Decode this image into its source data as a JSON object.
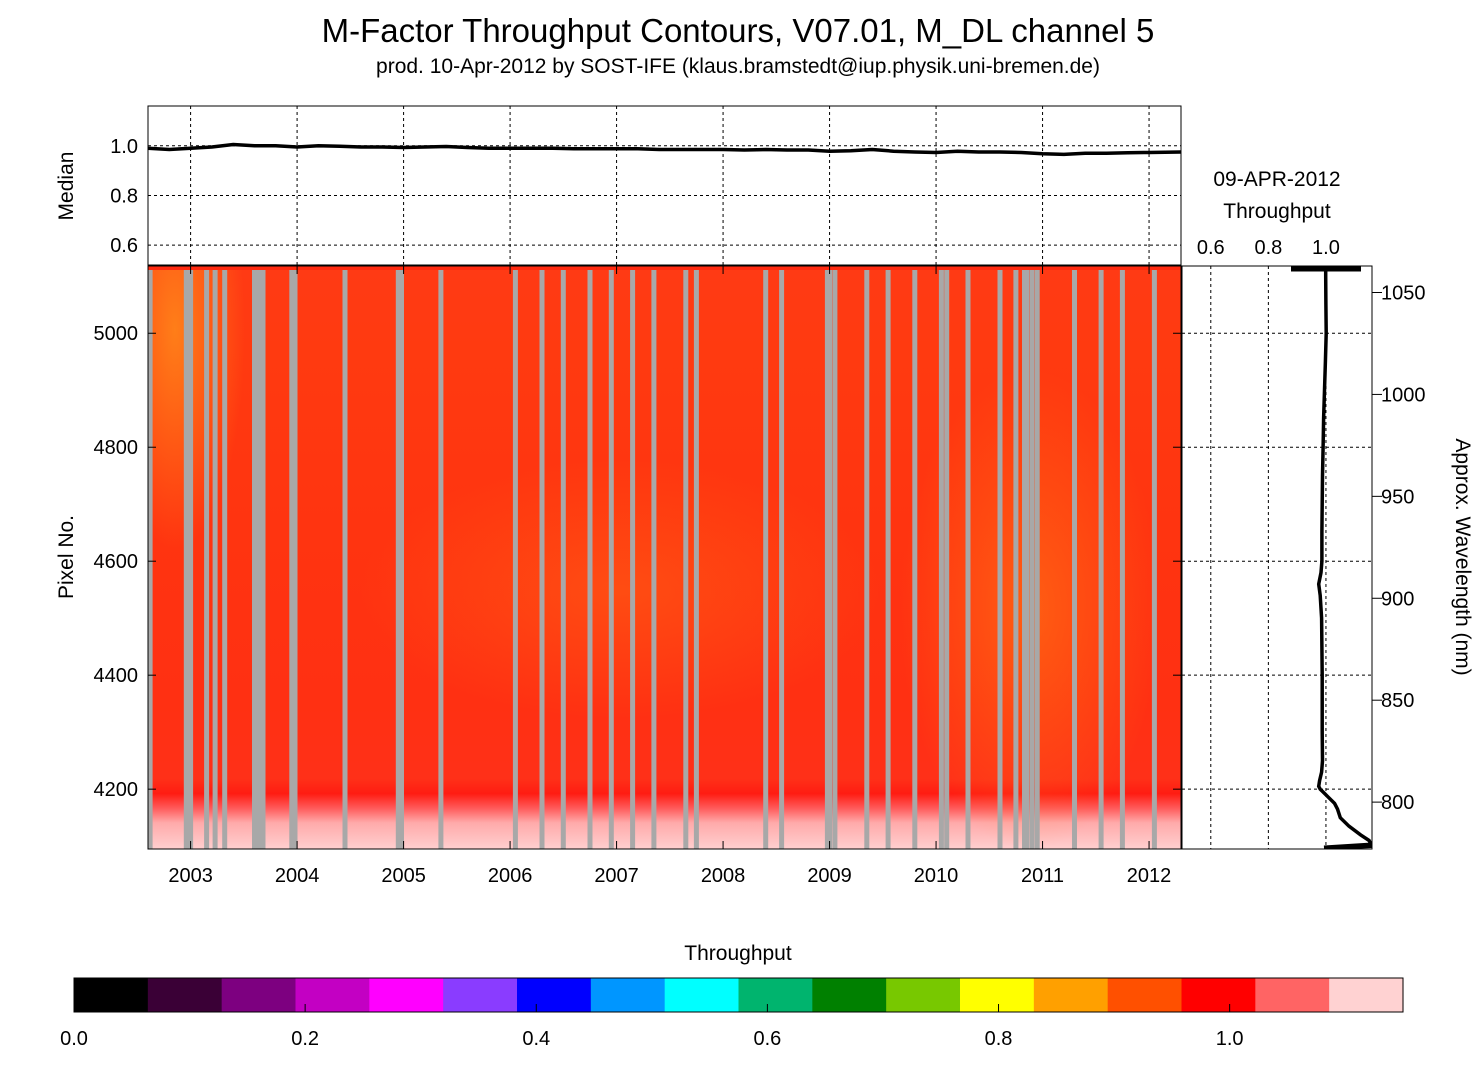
{
  "chart_data": [
    {
      "type": "line",
      "title": "M-Factor Throughput Contours, V07.01, M_DL channel 5",
      "subtitle": "prod. 10-Apr-2012 by SOST-IFE (klaus.bramstedt@iup.physik.uni-bremen.de)",
      "ylabel": "Median",
      "yticks": [
        "0.6",
        "0.8",
        "1.0"
      ],
      "ylim": [
        0.52,
        1.16
      ],
      "xlim": [
        2002.6,
        2012.3
      ],
      "grid": true,
      "series": [
        {
          "x": [
            2002.6,
            2002.8,
            2003.0,
            2003.2,
            2003.4,
            2003.6,
            2003.8,
            2004.0,
            2004.2,
            2004.4,
            2004.6,
            2004.8,
            2005.0,
            2005.2,
            2005.4,
            2005.6,
            2005.8,
            2006.0,
            2006.2,
            2006.4,
            2006.6,
            2006.8,
            2007.0,
            2007.2,
            2007.4,
            2007.6,
            2007.8,
            2008.0,
            2008.2,
            2008.4,
            2008.6,
            2008.8,
            2009.0,
            2009.2,
            2009.4,
            2009.6,
            2009.8,
            2010.0,
            2010.2,
            2010.4,
            2010.6,
            2010.8,
            2011.0,
            2011.2,
            2011.4,
            2011.6,
            2011.8,
            2012.0,
            2012.3
          ],
          "values": [
            0.99,
            0.985,
            0.99,
            0.995,
            1.005,
            1.0,
            1.0,
            0.995,
            1.0,
            0.998,
            0.995,
            0.995,
            0.993,
            0.995,
            0.997,
            0.993,
            0.99,
            0.99,
            0.99,
            0.99,
            0.988,
            0.988,
            0.988,
            0.988,
            0.985,
            0.985,
            0.985,
            0.985,
            0.983,
            0.985,
            0.983,
            0.983,
            0.978,
            0.98,
            0.985,
            0.978,
            0.975,
            0.973,
            0.978,
            0.975,
            0.975,
            0.973,
            0.968,
            0.965,
            0.97,
            0.97,
            0.972,
            0.973,
            0.975
          ]
        }
      ]
    },
    {
      "type": "heatmap",
      "ylabel": "Pixel No.",
      "xticks": [
        "2003",
        "2004",
        "2005",
        "2006",
        "2007",
        "2008",
        "2009",
        "2010",
        "2011",
        "2012"
      ],
      "yticks": [
        "4200",
        "4400",
        "4600",
        "4800",
        "5000"
      ],
      "xlim": [
        2002.6,
        2012.3
      ],
      "ylim": [
        4095,
        5118
      ],
      "colorscale": "Throughput",
      "description_values": "Throughput ~0.95-1.02 over most of the field (red/orange), orange-tinted near 0.92-0.95 at the top-left (2002-2003, pixels 4950-5118) and across 2010-2011; high values ~1.08-1.15 (pink) in pixels 4095-4150; missing data columns shown in grey",
      "gap_years": [
        2002.62,
        2002.96,
        2003.0,
        2003.15,
        2003.23,
        2003.32,
        2003.6,
        2003.62,
        2003.65,
        2003.68,
        2003.95,
        2003.98,
        2004.45,
        2004.95,
        2004.98,
        2005.35,
        2006.05,
        2006.3,
        2006.5,
        2006.75,
        2006.95,
        2007.15,
        2007.35,
        2007.65,
        2007.75,
        2008.4,
        2008.55,
        2008.98,
        2009.0,
        2009.05,
        2009.35,
        2009.55,
        2009.8,
        2010.05,
        2010.1,
        2010.3,
        2010.6,
        2010.75,
        2010.83,
        2010.85,
        2010.9,
        2010.95,
        2011.3,
        2011.55,
        2011.75,
        2012.05
      ]
    },
    {
      "type": "line",
      "title": "09-APR-2012",
      "xlabel": "Throughput",
      "xticks": [
        "0.6",
        "0.8",
        "1.0"
      ],
      "xlim": [
        0.5,
        1.16
      ],
      "ylabel_right": "Approx. Wavelength (nm)",
      "yticks_right": [
        "800",
        "850",
        "900",
        "950",
        "1000",
        "1050"
      ],
      "wavelength_ylim": [
        777,
        1063
      ],
      "grid": true,
      "series": [
        {
          "pixel": [
            5117,
            5112,
            5100,
            5050,
            5000,
            4950,
            4900,
            4850,
            4800,
            4750,
            4700,
            4650,
            4600,
            4580,
            4560,
            4540,
            4500,
            4450,
            4400,
            4350,
            4300,
            4250,
            4230,
            4215,
            4205,
            4200,
            4195,
            4185,
            4175,
            4165,
            4150,
            4135,
            4120,
            4110,
            4100,
            4096
          ],
          "values": [
            1.0,
            0.999,
            0.999,
            1.0,
            1.001,
            0.998,
            0.995,
            0.992,
            0.99,
            0.988,
            0.987,
            0.986,
            0.986,
            0.983,
            0.975,
            0.98,
            0.985,
            0.986,
            0.987,
            0.987,
            0.987,
            0.988,
            0.985,
            0.978,
            0.975,
            0.98,
            0.99,
            1.01,
            1.03,
            1.04,
            1.05,
            1.08,
            1.12,
            1.15,
            1.16,
            1.0
          ]
        }
      ]
    },
    {
      "type": "colorbar",
      "label": "Throughput",
      "ticks": [
        "0.0",
        "0.2",
        "0.4",
        "0.6",
        "0.8",
        "1.0"
      ],
      "range": [
        0.0,
        1.15
      ],
      "colors": [
        "#000000",
        "#3a0036",
        "#7d0080",
        "#c300c3",
        "#ff00ff",
        "#8a3cff",
        "#0000ff",
        "#0096ff",
        "#00ffff",
        "#00b46e",
        "#008000",
        "#78c800",
        "#ffff00",
        "#ffa000",
        "#ff5000",
        "#ff0000",
        "#ff6464",
        "#ffd2d2"
      ]
    }
  ]
}
